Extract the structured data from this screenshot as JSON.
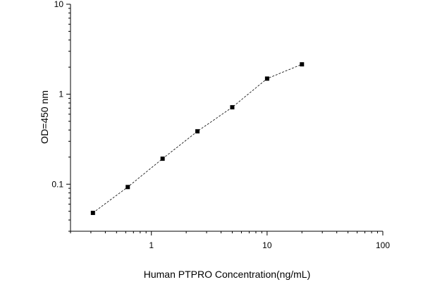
{
  "chart_data": {
    "type": "scatter",
    "title": "",
    "xlabel": "Human PTPRO Concentration(ng/mL)",
    "ylabel": "OD=450 nm",
    "x_scale": "log",
    "y_scale": "log",
    "xlim": [
      0.2,
      100
    ],
    "ylim": [
      0.03,
      10
    ],
    "x_ticks": [
      {
        "value": 1,
        "label": "1"
      },
      {
        "value": 10,
        "label": "10"
      },
      {
        "value": 100,
        "label": "100"
      }
    ],
    "y_ticks": [
      {
        "value": 0.1,
        "label": "0.1"
      },
      {
        "value": 1,
        "label": "1"
      },
      {
        "value": 10,
        "label": "10"
      }
    ],
    "grid": false,
    "legend": "none",
    "line_style": "dashed",
    "marker": "square",
    "color": "#000000",
    "series": [
      {
        "x": [
          0.3125,
          0.625,
          1.25,
          2.5,
          5,
          10,
          20
        ],
        "y": [
          0.048,
          0.093,
          0.192,
          0.387,
          0.716,
          1.491,
          2.149
        ]
      }
    ]
  }
}
